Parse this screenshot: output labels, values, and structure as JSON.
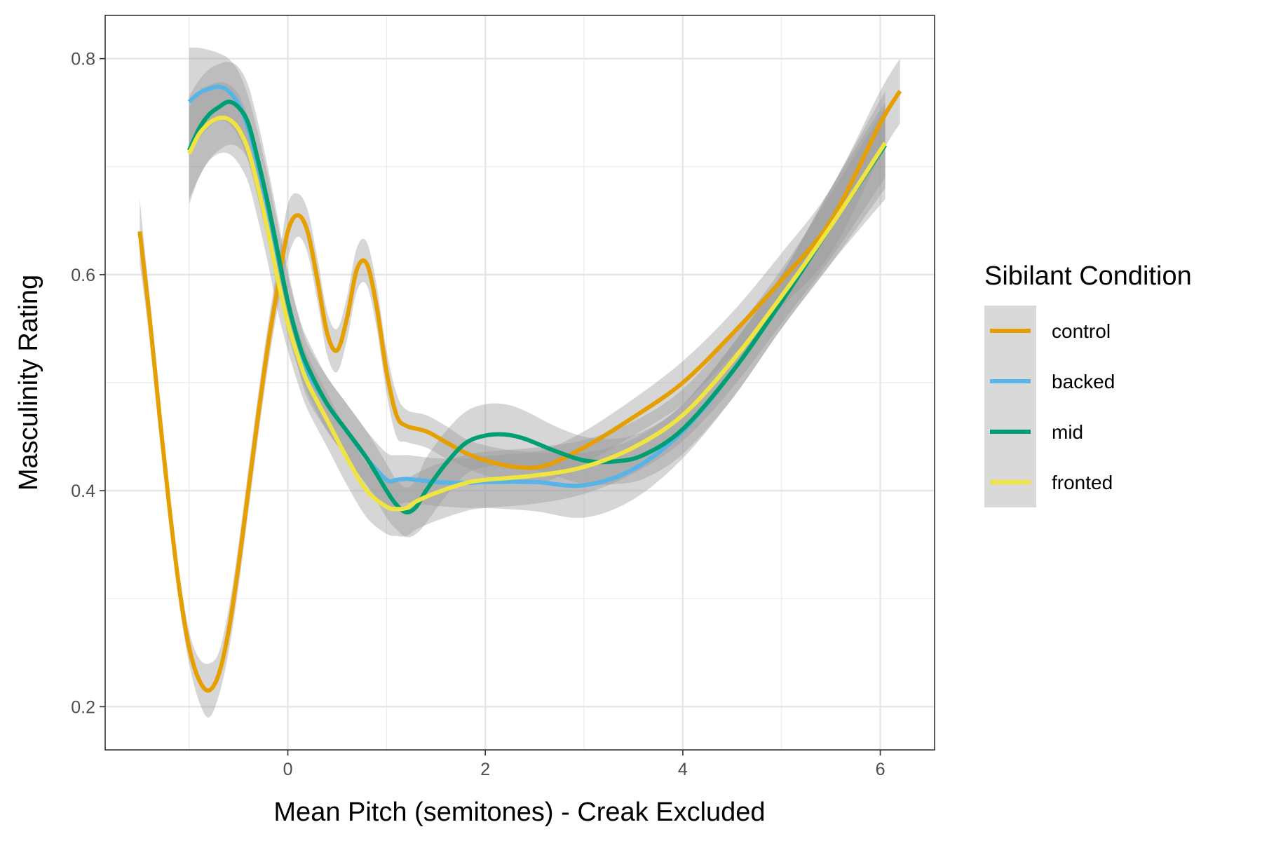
{
  "chart_data": {
    "type": "line",
    "title": "",
    "xlabel": "Mean Pitch (semitones) - Creak Excluded",
    "ylabel": "Masculinity Rating",
    "xlim": [
      -1.85,
      6.55
    ],
    "ylim": [
      0.16,
      0.84
    ],
    "xticks": [
      0,
      2,
      4,
      6
    ],
    "xtick_labels": [
      "0",
      "2",
      "4",
      "6"
    ],
    "yticks": [
      0.2,
      0.4,
      0.6,
      0.8
    ],
    "ytick_labels": [
      "0.2",
      "0.4",
      "0.6",
      "0.8"
    ],
    "grid": true,
    "legend_title": "Sibilant Condition",
    "legend_position": "right",
    "confidence_band_color": "#999999",
    "series": [
      {
        "name": "control",
        "color": "#E69F00",
        "x": [
          -1.5,
          -1.4,
          -1.3,
          -1.2,
          -1.1,
          -1.0,
          -0.9,
          -0.8,
          -0.7,
          -0.6,
          -0.5,
          -0.4,
          -0.3,
          -0.2,
          -0.1,
          0.0,
          0.1,
          0.2,
          0.3,
          0.4,
          0.5,
          0.6,
          0.7,
          0.8,
          0.9,
          1.0,
          1.1,
          1.2,
          1.4,
          1.6,
          1.8,
          2.0,
          2.3,
          2.6,
          3.0,
          3.5,
          4.0,
          4.5,
          5.0,
          5.5,
          6.0,
          6.2
        ],
        "y": [
          0.64,
          0.56,
          0.47,
          0.385,
          0.31,
          0.255,
          0.225,
          0.215,
          0.23,
          0.27,
          0.33,
          0.4,
          0.47,
          0.535,
          0.59,
          0.64,
          0.655,
          0.64,
          0.595,
          0.545,
          0.53,
          0.56,
          0.605,
          0.61,
          0.57,
          0.51,
          0.47,
          0.46,
          0.455,
          0.445,
          0.435,
          0.428,
          0.422,
          0.423,
          0.44,
          0.468,
          0.5,
          0.545,
          0.595,
          0.65,
          0.74,
          0.77
        ],
        "ci_upper": [
          0.67,
          0.58,
          0.49,
          0.4,
          0.325,
          0.27,
          0.245,
          0.24,
          0.25,
          0.29,
          0.35,
          0.42,
          0.49,
          0.555,
          0.61,
          0.665,
          0.675,
          0.66,
          0.615,
          0.565,
          0.55,
          0.58,
          0.625,
          0.63,
          0.59,
          0.53,
          0.49,
          0.475,
          0.47,
          0.46,
          0.448,
          0.442,
          0.437,
          0.438,
          0.455,
          0.485,
          0.52,
          0.565,
          0.62,
          0.68,
          0.77,
          0.8
        ],
        "ci_lower": [
          0.61,
          0.54,
          0.45,
          0.37,
          0.295,
          0.24,
          0.205,
          0.19,
          0.21,
          0.25,
          0.31,
          0.38,
          0.45,
          0.515,
          0.57,
          0.615,
          0.635,
          0.62,
          0.575,
          0.525,
          0.51,
          0.54,
          0.585,
          0.59,
          0.55,
          0.49,
          0.45,
          0.445,
          0.44,
          0.43,
          0.422,
          0.414,
          0.407,
          0.408,
          0.425,
          0.451,
          0.48,
          0.525,
          0.57,
          0.62,
          0.71,
          0.74
        ]
      },
      {
        "name": "backed",
        "color": "#56B4E9",
        "x": [
          -1.0,
          -0.9,
          -0.8,
          -0.7,
          -0.6,
          -0.5,
          -0.4,
          -0.3,
          -0.2,
          -0.1,
          0.0,
          0.1,
          0.2,
          0.4,
          0.6,
          0.8,
          1.0,
          1.1,
          1.2,
          1.3,
          1.5,
          1.8,
          2.0,
          2.5,
          3.0,
          3.5,
          4.0,
          4.5,
          5.0,
          5.5,
          6.05
        ],
        "y": [
          0.76,
          0.768,
          0.772,
          0.774,
          0.77,
          0.758,
          0.735,
          0.7,
          0.66,
          0.615,
          0.575,
          0.54,
          0.51,
          0.48,
          0.455,
          0.43,
          0.41,
          0.41,
          0.411,
          0.41,
          0.408,
          0.407,
          0.408,
          0.408,
          0.405,
          0.42,
          0.455,
          0.51,
          0.575,
          0.645,
          0.72
        ],
        "ci_upper": [
          0.81,
          0.81,
          0.808,
          0.805,
          0.8,
          0.788,
          0.765,
          0.73,
          0.69,
          0.645,
          0.6,
          0.565,
          0.535,
          0.505,
          0.48,
          0.455,
          0.435,
          0.433,
          0.433,
          0.432,
          0.43,
          0.43,
          0.432,
          0.435,
          0.435,
          0.448,
          0.48,
          0.535,
          0.6,
          0.68,
          0.77
        ],
        "ci_lower": [
          0.71,
          0.726,
          0.736,
          0.743,
          0.74,
          0.728,
          0.705,
          0.67,
          0.63,
          0.585,
          0.55,
          0.515,
          0.485,
          0.455,
          0.43,
          0.405,
          0.385,
          0.387,
          0.389,
          0.388,
          0.386,
          0.384,
          0.384,
          0.381,
          0.375,
          0.392,
          0.43,
          0.485,
          0.55,
          0.61,
          0.67
        ]
      },
      {
        "name": "mid",
        "color": "#009E73",
        "x": [
          -1.0,
          -0.9,
          -0.8,
          -0.7,
          -0.6,
          -0.5,
          -0.4,
          -0.3,
          -0.2,
          -0.1,
          0.0,
          0.1,
          0.2,
          0.4,
          0.6,
          0.8,
          1.0,
          1.1,
          1.2,
          1.3,
          1.4,
          1.6,
          1.8,
          2.0,
          2.2,
          2.4,
          2.7,
          3.0,
          3.3,
          3.6,
          4.0,
          4.5,
          5.0,
          5.5,
          6.05
        ],
        "y": [
          0.715,
          0.735,
          0.748,
          0.755,
          0.76,
          0.755,
          0.74,
          0.705,
          0.665,
          0.62,
          0.575,
          0.54,
          0.515,
          0.48,
          0.455,
          0.43,
          0.4,
          0.387,
          0.38,
          0.385,
          0.4,
          0.425,
          0.444,
          0.451,
          0.452,
          0.448,
          0.437,
          0.428,
          0.427,
          0.433,
          0.457,
          0.51,
          0.575,
          0.645,
          0.72
        ],
        "ci_upper": [
          0.765,
          0.78,
          0.79,
          0.795,
          0.797,
          0.792,
          0.775,
          0.74,
          0.698,
          0.652,
          0.605,
          0.565,
          0.54,
          0.505,
          0.48,
          0.455,
          0.425,
          0.41,
          0.403,
          0.41,
          0.43,
          0.455,
          0.473,
          0.48,
          0.48,
          0.474,
          0.46,
          0.45,
          0.448,
          0.455,
          0.48,
          0.535,
          0.6,
          0.68,
          0.76
        ],
        "ci_lower": [
          0.665,
          0.69,
          0.706,
          0.715,
          0.72,
          0.718,
          0.705,
          0.67,
          0.632,
          0.588,
          0.545,
          0.515,
          0.49,
          0.455,
          0.43,
          0.405,
          0.375,
          0.364,
          0.357,
          0.36,
          0.37,
          0.395,
          0.415,
          0.422,
          0.424,
          0.422,
          0.414,
          0.406,
          0.406,
          0.411,
          0.434,
          0.485,
          0.55,
          0.61,
          0.68
        ]
      },
      {
        "name": "fronted",
        "color": "#F0E442",
        "x": [
          -1.0,
          -0.9,
          -0.8,
          -0.7,
          -0.6,
          -0.5,
          -0.4,
          -0.3,
          -0.2,
          -0.1,
          0.0,
          0.1,
          0.2,
          0.4,
          0.6,
          0.8,
          1.0,
          1.1,
          1.2,
          1.3,
          1.5,
          1.8,
          2.0,
          2.5,
          3.0,
          3.5,
          4.0,
          4.5,
          5.0,
          5.5,
          6.05
        ],
        "y": [
          0.712,
          0.73,
          0.74,
          0.745,
          0.744,
          0.735,
          0.715,
          0.68,
          0.64,
          0.595,
          0.555,
          0.525,
          0.5,
          0.465,
          0.43,
          0.4,
          0.385,
          0.383,
          0.384,
          0.39,
          0.398,
          0.407,
          0.41,
          0.414,
          0.422,
          0.44,
          0.47,
          0.52,
          0.58,
          0.645,
          0.722
        ],
        "ci_upper": [
          0.755,
          0.77,
          0.775,
          0.778,
          0.776,
          0.767,
          0.745,
          0.71,
          0.67,
          0.625,
          0.58,
          0.55,
          0.525,
          0.49,
          0.455,
          0.425,
          0.41,
          0.408,
          0.41,
          0.416,
          0.424,
          0.433,
          0.436,
          0.44,
          0.447,
          0.464,
          0.494,
          0.545,
          0.605,
          0.675,
          0.755
        ],
        "ci_lower": [
          0.67,
          0.69,
          0.705,
          0.712,
          0.712,
          0.703,
          0.685,
          0.65,
          0.61,
          0.565,
          0.53,
          0.5,
          0.475,
          0.44,
          0.405,
          0.375,
          0.36,
          0.358,
          0.358,
          0.364,
          0.372,
          0.381,
          0.384,
          0.388,
          0.397,
          0.416,
          0.446,
          0.495,
          0.555,
          0.615,
          0.69
        ]
      }
    ]
  }
}
